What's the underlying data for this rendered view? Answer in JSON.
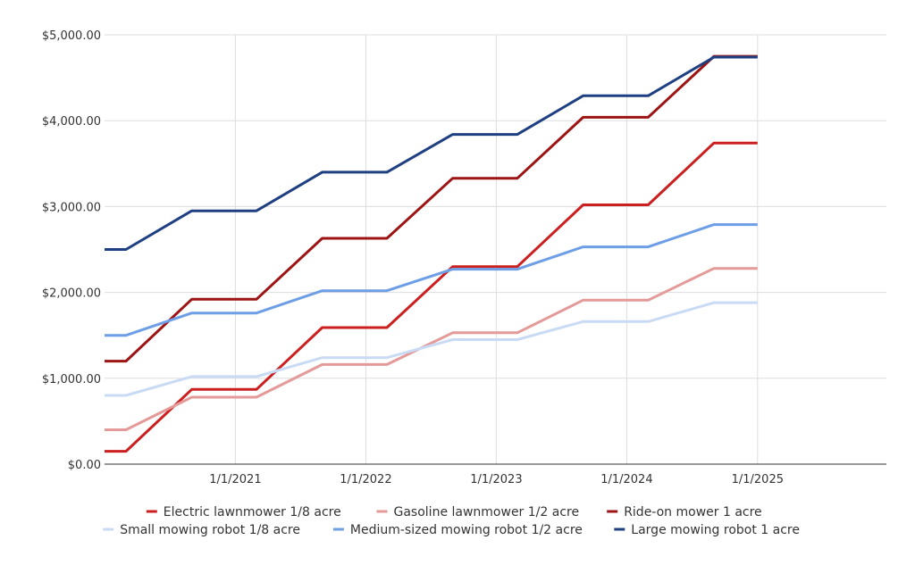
{
  "chart_data": {
    "type": "line",
    "title": "",
    "xlabel": "",
    "ylabel": "",
    "x_tick_labels": [
      "1/1/2021",
      "1/1/2022",
      "1/1/2023",
      "1/1/2024",
      "1/1/2025"
    ],
    "y_tick_labels": [
      "$0.00",
      "$1,000.00",
      "$2,000.00",
      "$3,000.00",
      "$4,000.00",
      "$5,000.00"
    ],
    "ylim": [
      0,
      5000
    ],
    "grid": true,
    "legend_position": "bottom",
    "x": [
      "2020-01-01",
      "2020-03-01",
      "2020-09-01",
      "2021-01-01",
      "2021-03-01",
      "2021-09-01",
      "2022-01-01",
      "2022-03-01",
      "2022-09-01",
      "2023-01-01",
      "2023-03-01",
      "2023-09-01",
      "2024-01-01",
      "2024-03-01",
      "2024-09-01",
      "2025-01-01"
    ],
    "series": [
      {
        "name": "Electric lawnmower 1/8 acre",
        "color": "#cc1f1f",
        "values": [
          150,
          150,
          870,
          870,
          870,
          1590,
          1590,
          1590,
          2300,
          2300,
          2300,
          3020,
          3020,
          3020,
          3740,
          3740
        ]
      },
      {
        "name": "Gasoline lawnmower 1/2 acre",
        "color": "#e39a98",
        "values": [
          400,
          400,
          780,
          780,
          780,
          1160,
          1160,
          1160,
          1530,
          1530,
          1530,
          1910,
          1910,
          1910,
          2280,
          2280
        ]
      },
      {
        "name": "Ride-on mower 1 acre",
        "color": "#9c1414",
        "values": [
          1200,
          1200,
          1920,
          1920,
          1920,
          2630,
          2630,
          2630,
          3330,
          3330,
          3330,
          4040,
          4040,
          4040,
          4750,
          4750
        ]
      },
      {
        "name": "Small mowing robot 1/8 acre",
        "color": "#c9dbf4",
        "values": [
          800,
          800,
          1020,
          1020,
          1020,
          1240,
          1240,
          1240,
          1450,
          1450,
          1450,
          1660,
          1660,
          1660,
          1880,
          1880
        ]
      },
      {
        "name": "Medium-sized mowing robot 1/2 acre",
        "color": "#6d9ee6",
        "values": [
          1500,
          1500,
          1760,
          1760,
          1760,
          2020,
          2020,
          2020,
          2270,
          2270,
          2270,
          2530,
          2530,
          2530,
          2790,
          2790
        ]
      },
      {
        "name": "Large mowing robot 1 acre",
        "color": "#1e3f82",
        "values": [
          2500,
          2500,
          2950,
          2950,
          2950,
          3400,
          3400,
          3400,
          3840,
          3840,
          3840,
          4290,
          4290,
          4290,
          4740,
          4740
        ]
      }
    ],
    "colors": {
      "grid": "#dddddd",
      "axis": "#333333",
      "text": "#333333"
    }
  }
}
